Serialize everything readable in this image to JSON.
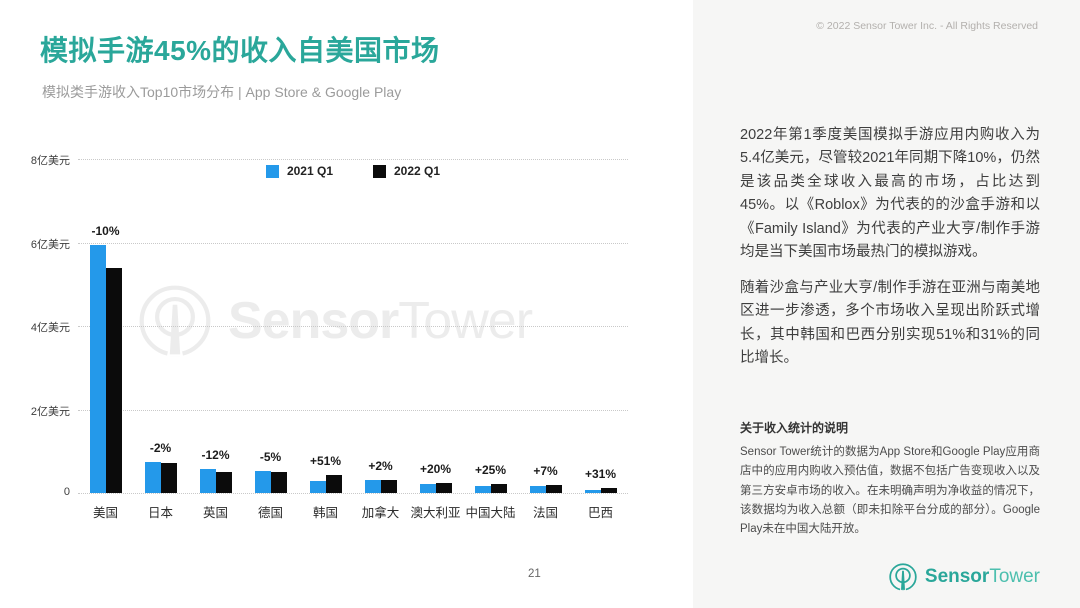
{
  "page": {
    "title": "模拟手游45%的收入自美国市场",
    "subtitle": "模拟类手游收入Top10市场分布 | App Store & Google Play",
    "page_number": "21",
    "copyright": "© 2022 Sensor Tower Inc. - All Rights Reserved"
  },
  "chart_data": {
    "type": "bar",
    "categories": [
      "美国",
      "日本",
      "英国",
      "德国",
      "韩国",
      "加拿大",
      "澳大利亚",
      "中国大陆",
      "法国",
      "巴西"
    ],
    "series": [
      {
        "name": "2021 Q1",
        "color": "#2499ea",
        "values": [
          5.95,
          0.74,
          0.58,
          0.53,
          0.28,
          0.31,
          0.21,
          0.17,
          0.18,
          0.08
        ]
      },
      {
        "name": "2022 Q1",
        "color": "#0b0b0b",
        "values": [
          5.4,
          0.73,
          0.51,
          0.5,
          0.42,
          0.32,
          0.25,
          0.21,
          0.19,
          0.11
        ]
      }
    ],
    "change_labels": [
      "-10%",
      "-2%",
      "-12%",
      "-5%",
      "+51%",
      "+2%",
      "+20%",
      "+25%",
      "+7%",
      "+31%"
    ],
    "unit": "亿美元",
    "y_ticks": [
      "8亿美元",
      "6亿美元",
      "4亿美元",
      "2亿美元",
      "0"
    ],
    "y_tick_values": [
      8,
      6,
      4,
      2,
      0
    ],
    "ylim": [
      0,
      8
    ],
    "grid": "dotted-horizontal",
    "legend_position": "top-center",
    "watermark_bold": "Sensor",
    "watermark_light": "Tower"
  },
  "panel": {
    "paragraph1": "2022年第1季度美国模拟手游应用内购收入为5.4亿美元，尽管较2021年同期下降10%，仍然是该品类全球收入最高的市场，占比达到45%。以《Roblox》为代表的的沙盒手游和以《Family Island》为代表的产业大亨/制作手游均是当下美国市场最热门的模拟游戏。",
    "paragraph2": "随着沙盒与产业大亨/制作手游在亚洲与南美地区进一步渗透，多个市场收入呈现出阶跃式增长，其中韩国和巴西分别实现51%和31%的同比增长。",
    "note_title": "关于收入统计的说明",
    "note_body": "Sensor Tower统计的数据为App Store和Google Play应用商店中的应用内购收入预估值，数据不包括广告变现收入以及第三方安卓市场的收入。在未明确声明为净收益的情况下，该数据均为收入总额（即未扣除平台分成的部分）。Google Play未在中国大陆开放。",
    "logo_bold": "Sensor",
    "logo_light": "Tower"
  },
  "colors": {
    "accent_teal": "#2aa79a",
    "bar_2021": "#2499ea",
    "bar_2022": "#0b0b0b",
    "panel_bg": "#f6f6f5",
    "watermark": "#ececec"
  }
}
